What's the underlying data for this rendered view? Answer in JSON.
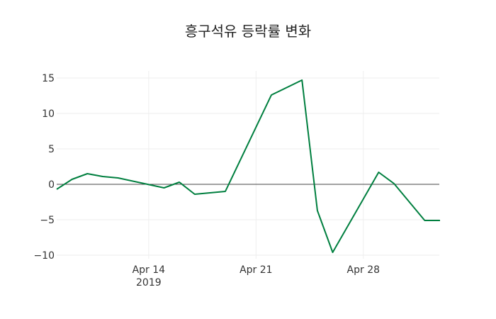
{
  "chart_data": {
    "type": "line",
    "title": "흥구석유 등락률 변화",
    "xlabel": "",
    "ylabel": "",
    "ylim": [
      -10.2,
      15.8
    ],
    "grid": true,
    "x": [
      "2019-04-08",
      "2019-04-09",
      "2019-04-10",
      "2019-04-11",
      "2019-04-12",
      "2019-04-15",
      "2019-04-16",
      "2019-04-17",
      "2019-04-19",
      "2019-04-22",
      "2019-04-24",
      "2019-04-25",
      "2019-04-26",
      "2019-04-29",
      "2019-04-30",
      "2019-05-02",
      "2019-05-03"
    ],
    "series": [
      {
        "name": "등락률",
        "color": "#007f3f",
        "values": [
          -0.7,
          0.7,
          1.5,
          1.1,
          0.9,
          -0.5,
          0.3,
          -1.4,
          -1.0,
          12.6,
          14.7,
          -3.7,
          -9.6,
          1.7,
          0.1,
          -5.1,
          -5.1
        ]
      }
    ],
    "y_ticks": [
      15,
      10,
      5,
      0,
      -5,
      -10
    ],
    "y_tick_labels": [
      "15",
      "10",
      "5",
      "0",
      "−5",
      "−10"
    ],
    "x_ticks": [
      {
        "date": "2019-04-14",
        "label": "Apr 14",
        "sublabel": "2019"
      },
      {
        "date": "2019-04-21",
        "label": "Apr 21",
        "sublabel": ""
      },
      {
        "date": "2019-04-28",
        "label": "Apr 28",
        "sublabel": ""
      }
    ]
  }
}
